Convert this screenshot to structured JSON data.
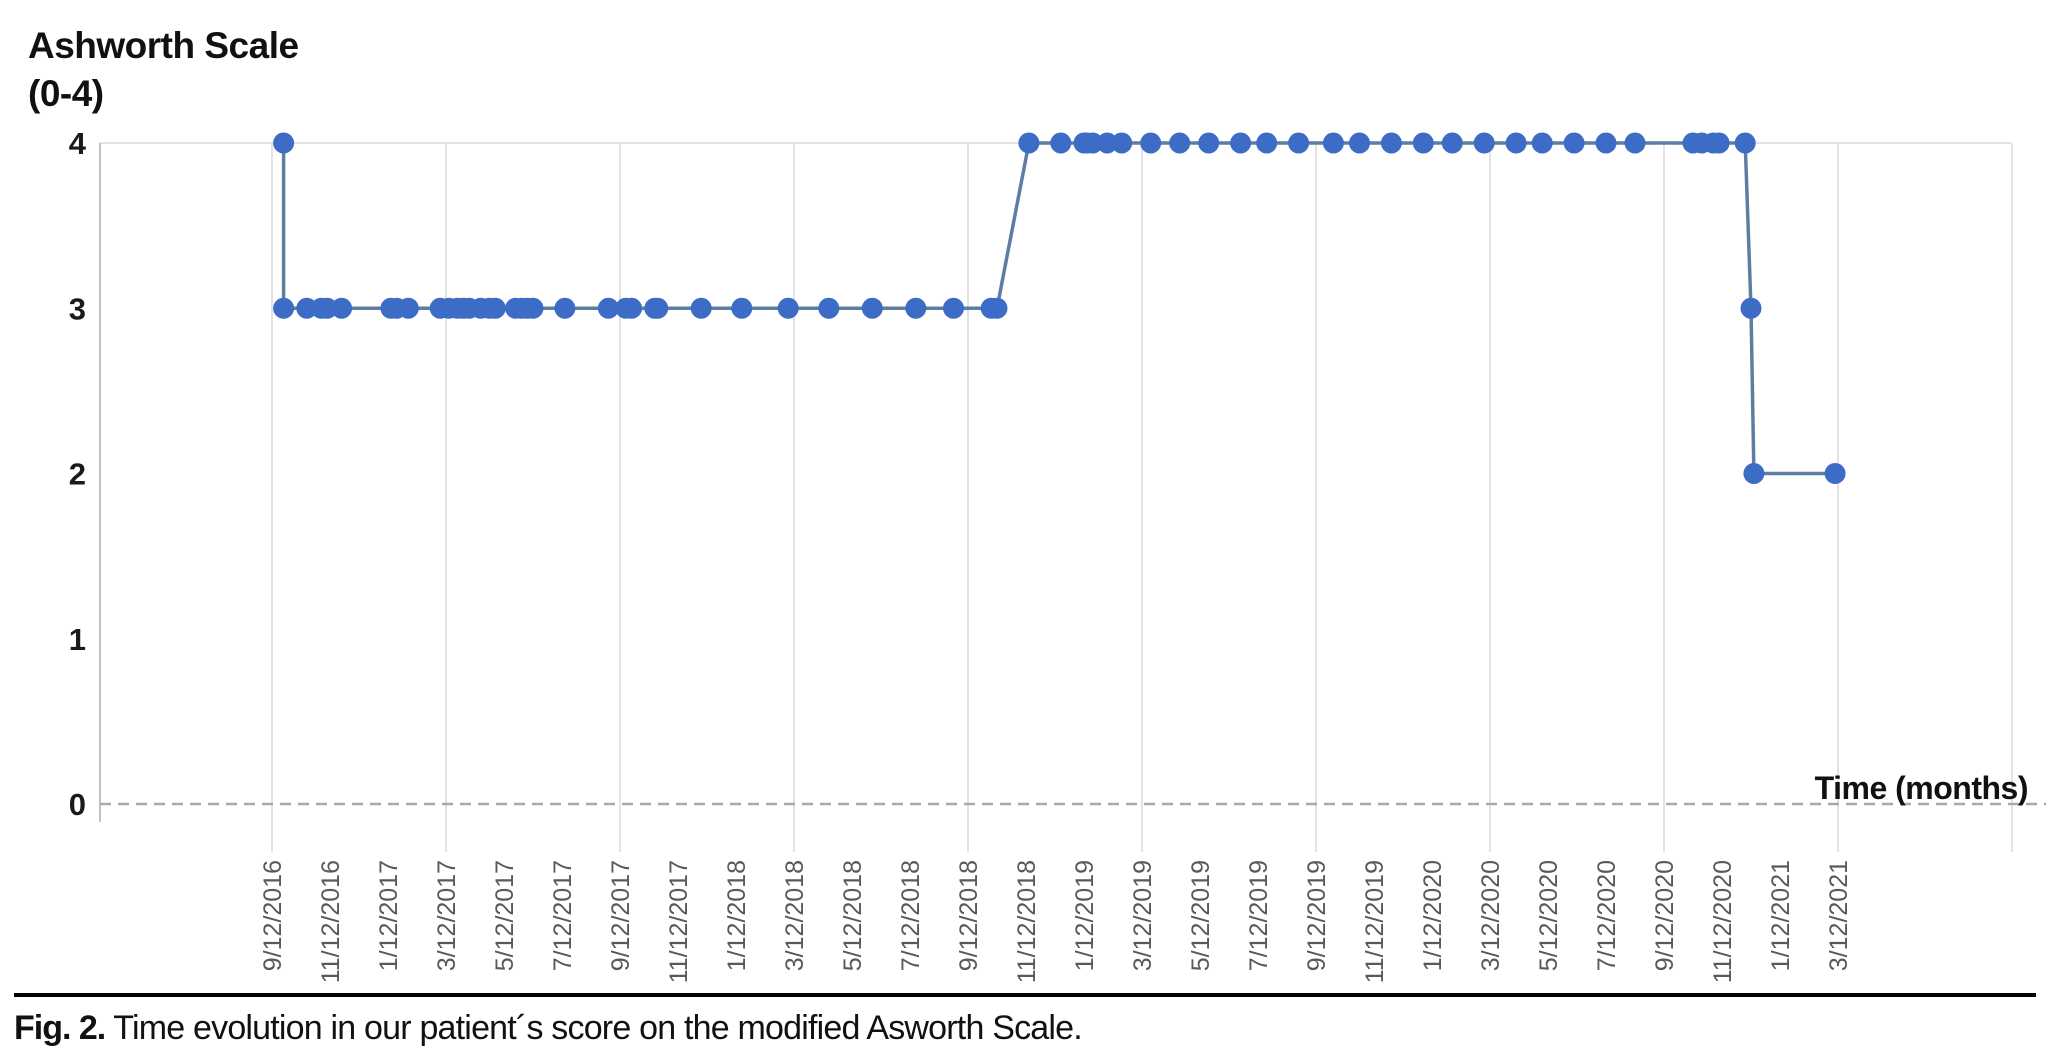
{
  "figure": {
    "y_axis_title_line1": "Ashworth Scale",
    "y_axis_title_line2": "(0-4)",
    "x_axis_title": "Time (months)"
  },
  "caption": {
    "label": "Fig. 2.",
    "text": " Time evolution in our patient´s score on the modified Asworth Scale."
  },
  "chart_data": {
    "type": "line",
    "title": "Ashworth Scale (0-4)",
    "xlabel": "Time (months)",
    "ylabel": "Ashworth Scale (0-4)",
    "ylim": [
      0,
      4
    ],
    "y_ticks": [
      4,
      3,
      2,
      1,
      0
    ],
    "grid": "vertical gridlines every 6 months; single horizontal gridline at y=4; dashed baseline at y=0",
    "legend": "none",
    "x_unit": "visit dates, axis labeled every 2 months from 9/12/2016 to 3/12/2021; point x stored as months after 9/12/2016",
    "x_tick_labels": [
      "9/12/2016",
      "11/12/2016",
      "1/12/2017",
      "3/12/2017",
      "5/12/2017",
      "7/12/2017",
      "9/12/2017",
      "11/12/2017",
      "1/12/2018",
      "3/12/2018",
      "5/12/2018",
      "7/12/2018",
      "9/12/2018",
      "11/12/2018",
      "1/12/2019",
      "3/12/2019",
      "5/12/2019",
      "7/12/2019",
      "9/12/2019",
      "11/12/2019",
      "1/12/2020",
      "3/12/2020",
      "5/12/2020",
      "7/12/2020",
      "9/12/2020",
      "11/12/2020",
      "1/12/2021",
      "3/12/2021"
    ],
    "x_gridline_every_months": 6,
    "points": [
      {
        "m": 0.4,
        "v": 4
      },
      {
        "m": 0.4,
        "v": 3
      },
      {
        "m": 1.2,
        "v": 3
      },
      {
        "m": 1.7,
        "v": 3
      },
      {
        "m": 1.9,
        "v": 3
      },
      {
        "m": 2.4,
        "v": 3
      },
      {
        "m": 4.1,
        "v": 3
      },
      {
        "m": 4.3,
        "v": 3
      },
      {
        "m": 4.7,
        "v": 3
      },
      {
        "m": 5.8,
        "v": 3
      },
      {
        "m": 6.1,
        "v": 3
      },
      {
        "m": 6.4,
        "v": 3
      },
      {
        "m": 6.6,
        "v": 3
      },
      {
        "m": 6.8,
        "v": 3
      },
      {
        "m": 7.2,
        "v": 3
      },
      {
        "m": 7.5,
        "v": 3
      },
      {
        "m": 7.7,
        "v": 3
      },
      {
        "m": 8.4,
        "v": 3
      },
      {
        "m": 8.6,
        "v": 3
      },
      {
        "m": 8.8,
        "v": 3
      },
      {
        "m": 9.0,
        "v": 3
      },
      {
        "m": 10.1,
        "v": 3
      },
      {
        "m": 11.6,
        "v": 3
      },
      {
        "m": 12.2,
        "v": 3
      },
      {
        "m": 12.4,
        "v": 3
      },
      {
        "m": 13.2,
        "v": 3
      },
      {
        "m": 13.3,
        "v": 3
      },
      {
        "m": 14.8,
        "v": 3
      },
      {
        "m": 16.2,
        "v": 3
      },
      {
        "m": 17.8,
        "v": 3
      },
      {
        "m": 19.2,
        "v": 3
      },
      {
        "m": 20.7,
        "v": 3
      },
      {
        "m": 22.2,
        "v": 3
      },
      {
        "m": 23.5,
        "v": 3
      },
      {
        "m": 24.8,
        "v": 3
      },
      {
        "m": 25.0,
        "v": 3
      },
      {
        "m": 26.1,
        "v": 4
      },
      {
        "m": 27.2,
        "v": 4
      },
      {
        "m": 28.0,
        "v": 4
      },
      {
        "m": 28.1,
        "v": 4
      },
      {
        "m": 28.3,
        "v": 4
      },
      {
        "m": 28.8,
        "v": 4
      },
      {
        "m": 29.3,
        "v": 4
      },
      {
        "m": 30.3,
        "v": 4
      },
      {
        "m": 31.3,
        "v": 4
      },
      {
        "m": 32.3,
        "v": 4
      },
      {
        "m": 33.4,
        "v": 4
      },
      {
        "m": 34.3,
        "v": 4
      },
      {
        "m": 35.4,
        "v": 4
      },
      {
        "m": 36.6,
        "v": 4
      },
      {
        "m": 37.5,
        "v": 4
      },
      {
        "m": 38.6,
        "v": 4
      },
      {
        "m": 39.7,
        "v": 4
      },
      {
        "m": 40.7,
        "v": 4
      },
      {
        "m": 41.8,
        "v": 4
      },
      {
        "m": 42.9,
        "v": 4
      },
      {
        "m": 43.8,
        "v": 4
      },
      {
        "m": 44.9,
        "v": 4
      },
      {
        "m": 46.0,
        "v": 4
      },
      {
        "m": 47.0,
        "v": 4
      },
      {
        "m": 49.0,
        "v": 4
      },
      {
        "m": 49.3,
        "v": 4
      },
      {
        "m": 49.7,
        "v": 4
      },
      {
        "m": 49.9,
        "v": 4
      },
      {
        "m": 50.8,
        "v": 4
      },
      {
        "m": 51.0,
        "v": 3
      },
      {
        "m": 51.1,
        "v": 2
      },
      {
        "m": 53.9,
        "v": 2
      }
    ],
    "colors": {
      "marker": "#3d6cc6",
      "line": "#5e7da2",
      "gridline": "#e3e3e3",
      "axis_line": "#bcc3ca",
      "zero_line": "#a9a9a9",
      "x_tick_label": "#595959",
      "y_tick_label": "#1a1a1a",
      "axis_title": "#000000"
    }
  }
}
